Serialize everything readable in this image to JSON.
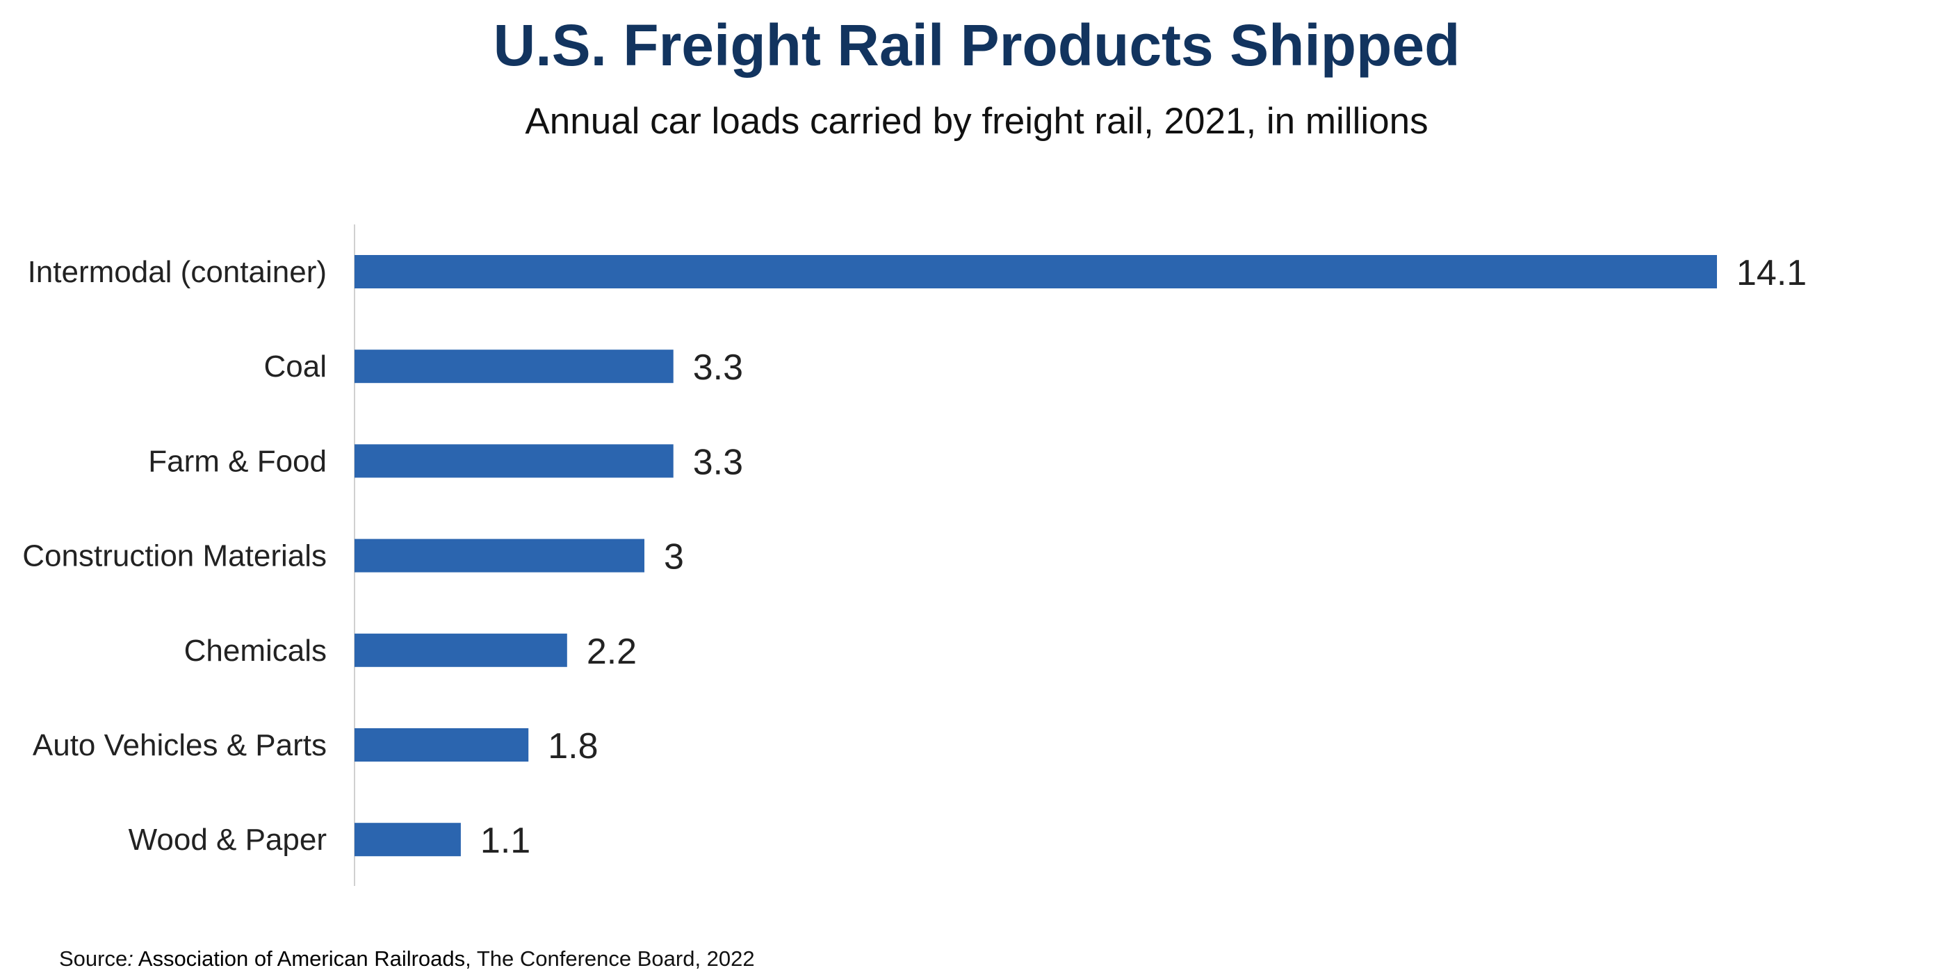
{
  "chart_data": {
    "type": "bar",
    "orientation": "horizontal",
    "title": "U.S. Freight Rail Products Shipped",
    "subtitle": "Annual car loads carried by freight rail, 2021, in millions",
    "categories": [
      "Intermodal (container)",
      "Coal",
      "Farm & Food",
      "Construction Materials",
      "Chemicals",
      "Auto Vehicles & Parts",
      "Wood & Paper"
    ],
    "values": [
      14.1,
      3.3,
      3.3,
      3,
      2.2,
      1.8,
      1.1
    ],
    "data_labels": [
      "14.1",
      "3.3",
      "3.3",
      "3",
      "2.2",
      "1.8",
      "1.1"
    ],
    "xlabel": "",
    "ylabel": "",
    "xlim": [
      0,
      14.1
    ],
    "grid": false,
    "legend": "none"
  },
  "source": {
    "prefix": "Source",
    "colon": ":",
    "org": " Association of American Railroads",
    "rest": ", The Conference Board, 2022"
  },
  "colors": {
    "title": "#12345f",
    "bar": "#2b65af",
    "axis": "#d0d0d0"
  }
}
